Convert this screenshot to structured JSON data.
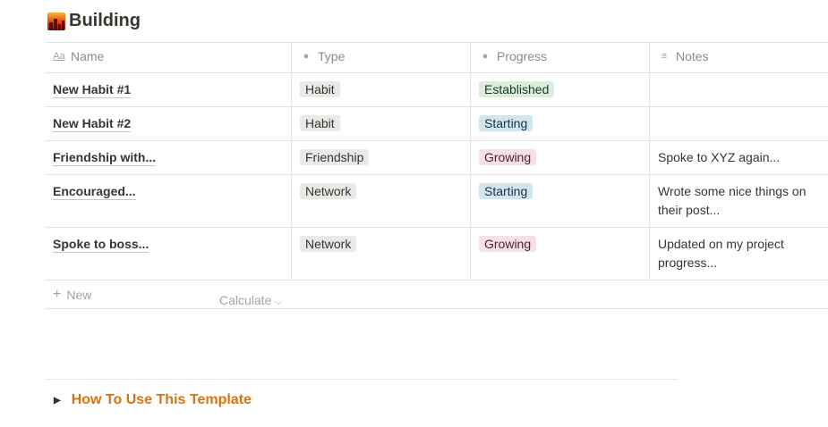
{
  "page": {
    "title": "Building",
    "icon": "city-sunset-icon"
  },
  "columns": [
    {
      "label": "Name",
      "icon": "text-aa-icon"
    },
    {
      "label": "Type",
      "icon": "select-icon"
    },
    {
      "label": "Progress",
      "icon": "select-icon"
    },
    {
      "label": "Notes",
      "icon": "text-lines-icon"
    }
  ],
  "rows": [
    {
      "name": "New Habit #1",
      "type": "Habit",
      "progress": "Established",
      "notes": ""
    },
    {
      "name": "New Habit #2",
      "type": "Habit",
      "progress": "Starting",
      "notes": ""
    },
    {
      "name": "Friendship with...",
      "type": "Friendship",
      "progress": "Growing",
      "notes": "Spoke to XYZ again..."
    },
    {
      "name": "Encouraged...",
      "type": "Network",
      "progress": "Starting",
      "notes": "Wrote some nice things on their post..."
    },
    {
      "name": "Spoke to boss...",
      "type": "Network",
      "progress": "Growing",
      "notes": "Updated on my project progress..."
    }
  ],
  "tag_colors": {
    "Habit": [
      "#e9e9e7",
      "#37352f"
    ],
    "Friendship": [
      "#e9e9e7",
      "#37352f"
    ],
    "Network": [
      "#e9e9e7",
      "#37352f"
    ],
    "Established": [
      "#dbeddb",
      "#1c3829"
    ],
    "Starting": [
      "#d3e5ef",
      "#183347"
    ],
    "Growing": [
      "#f5e0e9",
      "#4c2337"
    ]
  },
  "new_label": "New",
  "calculate_label": "Calculate",
  "toggle": {
    "label": "How To Use This Template",
    "color": "#d9730d"
  }
}
